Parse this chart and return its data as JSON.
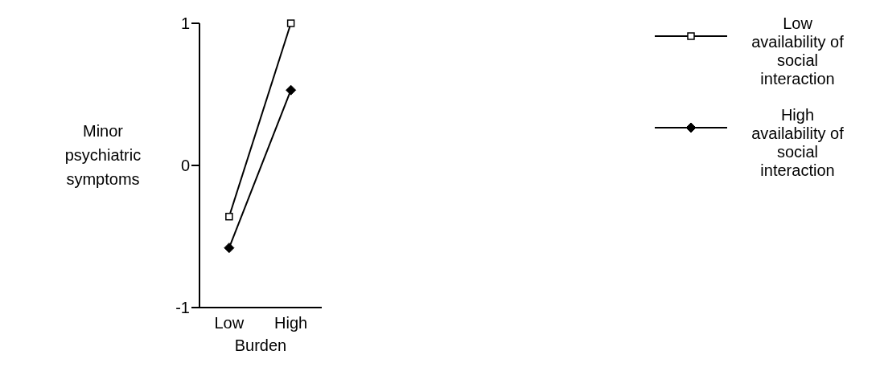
{
  "chart_data": {
    "type": "line",
    "xlabel": "Burden",
    "ylabel": "Minor psychiatric symptoms",
    "categories": [
      "Low",
      "High"
    ],
    "series": [
      {
        "name": "Low availability of social interaction",
        "color": "#000000",
        "marker": "square",
        "values": [
          -0.36,
          1.0
        ]
      },
      {
        "name": "High availability of social interaction",
        "color": "#000000",
        "marker": "diamond",
        "values": [
          -0.58,
          0.53
        ]
      }
    ],
    "ylim": [
      -1,
      1
    ],
    "yticks": [
      -1,
      0,
      1
    ],
    "grid": false,
    "legend": "right"
  }
}
